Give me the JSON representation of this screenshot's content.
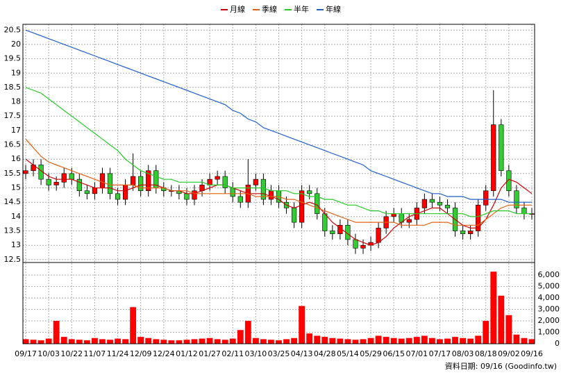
{
  "chart_data": [
    {
      "type": "candlestick",
      "open": [
        15.5,
        15.6,
        15.8,
        15.3,
        15.1,
        15.2,
        15.5,
        15.3,
        14.9,
        14.8,
        15.0,
        15.5,
        14.8,
        14.6,
        15.1,
        15.4,
        14.9,
        15.6,
        15.0,
        14.9,
        14.9,
        14.8,
        14.6,
        14.9,
        15.1,
        15.3,
        15.4,
        15.0,
        14.7,
        14.5,
        15.1,
        15.3,
        14.6,
        14.9,
        14.5,
        14.3,
        13.8,
        14.9,
        14.8,
        14.1,
        13.5,
        13.4,
        13.7,
        13.2,
        12.9,
        13.0,
        13.1,
        13.6,
        14.0,
        14.1,
        13.8,
        13.9,
        14.3,
        14.6,
        14.5,
        14.4,
        14.3,
        13.5,
        13.4,
        13.5,
        14.4,
        14.9,
        17.2,
        15.6,
        14.9,
        14.3,
        14.1
      ],
      "high": [
        15.8,
        16.0,
        16.0,
        15.5,
        15.4,
        15.7,
        15.7,
        15.5,
        15.1,
        15.2,
        15.7,
        15.7,
        15.0,
        15.3,
        16.2,
        15.6,
        15.8,
        15.8,
        15.2,
        15.1,
        15.1,
        15.0,
        15.1,
        15.3,
        15.5,
        15.6,
        15.6,
        15.2,
        14.9,
        16.0,
        15.5,
        15.5,
        15.1,
        15.1,
        14.7,
        14.5,
        15.1,
        15.1,
        15.0,
        14.3,
        13.7,
        13.9,
        13.9,
        13.4,
        13.2,
        13.3,
        13.8,
        14.2,
        14.3,
        14.3,
        14.1,
        14.5,
        14.8,
        14.8,
        14.7,
        14.6,
        14.5,
        13.7,
        13.7,
        14.6,
        15.1,
        18.4,
        17.4,
        15.8,
        15.1,
        14.5,
        14.3
      ],
      "low": [
        15.3,
        15.4,
        15.1,
        14.9,
        14.9,
        15.0,
        15.1,
        14.7,
        14.6,
        14.6,
        14.8,
        14.6,
        14.4,
        14.4,
        14.9,
        14.7,
        14.7,
        14.8,
        14.7,
        14.7,
        14.6,
        14.4,
        14.4,
        14.7,
        14.9,
        15.1,
        14.8,
        14.5,
        14.3,
        14.3,
        14.9,
        14.4,
        14.4,
        14.3,
        14.1,
        13.6,
        13.6,
        14.6,
        13.9,
        13.3,
        13.2,
        13.2,
        13.0,
        12.7,
        12.7,
        12.8,
        12.9,
        13.4,
        13.8,
        13.6,
        13.6,
        13.7,
        14.1,
        14.3,
        14.2,
        14.1,
        13.3,
        13.2,
        13.2,
        13.3,
        14.2,
        14.7,
        15.4,
        14.7,
        14.1,
        13.9,
        13.9
      ],
      "close": [
        15.6,
        15.8,
        15.3,
        15.1,
        15.2,
        15.5,
        15.3,
        14.9,
        14.8,
        15.0,
        15.5,
        14.8,
        14.6,
        15.1,
        15.4,
        14.9,
        15.6,
        15.0,
        14.9,
        14.9,
        14.8,
        14.6,
        14.9,
        15.1,
        15.3,
        15.4,
        15.0,
        14.7,
        14.5,
        15.1,
        15.3,
        14.6,
        14.9,
        14.5,
        14.3,
        13.8,
        14.9,
        14.8,
        14.1,
        13.5,
        13.4,
        13.7,
        13.2,
        12.9,
        13.0,
        13.1,
        13.6,
        14.0,
        14.1,
        13.8,
        13.9,
        14.3,
        14.6,
        14.5,
        14.4,
        14.3,
        13.5,
        13.4,
        13.5,
        14.4,
        14.9,
        17.2,
        15.6,
        14.9,
        14.3,
        14.1,
        14.1
      ],
      "up_color": "#ff0000",
      "down_color": "#33cc33",
      "series": [
        {
          "name": "月線",
          "color": "#cc0000",
          "values": [
            16.0,
            15.8,
            15.6,
            15.4,
            15.3,
            15.3,
            15.3,
            15.2,
            15.1,
            15.0,
            15.0,
            15.0,
            14.9,
            14.9,
            15.0,
            15.1,
            15.1,
            15.1,
            15.0,
            14.9,
            14.9,
            14.8,
            14.8,
            14.9,
            15.0,
            15.1,
            15.1,
            15.0,
            14.9,
            14.8,
            14.8,
            14.8,
            14.7,
            14.6,
            14.4,
            14.3,
            14.4,
            14.5,
            14.4,
            14.1,
            13.8,
            13.6,
            13.4,
            13.2,
            13.1,
            13.0,
            13.1,
            13.3,
            13.6,
            13.8,
            14.0,
            14.1,
            14.2,
            14.3,
            14.3,
            14.1,
            13.9,
            13.7,
            13.6,
            13.6,
            13.9,
            14.4,
            15.0,
            15.3,
            15.2,
            15.0,
            14.8
          ]
        },
        {
          "name": "季線",
          "color": "#e06010",
          "values": [
            16.7,
            16.4,
            16.1,
            15.9,
            15.8,
            15.7,
            15.6,
            15.5,
            15.4,
            15.3,
            15.2,
            15.1,
            15.1,
            15.1,
            15.1,
            15.0,
            15.0,
            15.0,
            15.0,
            14.9,
            14.9,
            14.9,
            14.8,
            14.8,
            14.8,
            14.8,
            14.8,
            14.8,
            14.8,
            14.8,
            14.7,
            14.7,
            14.7,
            14.7,
            14.6,
            14.6,
            14.5,
            14.4,
            14.3,
            14.2,
            14.1,
            14.0,
            13.9,
            13.8,
            13.8,
            13.8,
            13.8,
            13.8,
            13.8,
            13.7,
            13.7,
            13.7,
            13.7,
            13.8,
            13.8,
            13.8,
            13.7,
            13.7,
            13.7,
            13.7,
            13.9,
            14.1,
            14.3,
            14.4,
            14.4,
            14.4,
            14.4
          ]
        },
        {
          "name": "半年",
          "color": "#22cc22",
          "values": [
            18.5,
            18.4,
            18.3,
            18.1,
            17.9,
            17.7,
            17.5,
            17.3,
            17.1,
            16.9,
            16.7,
            16.5,
            16.3,
            16.0,
            15.8,
            15.6,
            15.5,
            15.4,
            15.3,
            15.3,
            15.2,
            15.2,
            15.2,
            15.2,
            15.1,
            15.1,
            15.1,
            15.0,
            15.0,
            15.0,
            15.0,
            15.0,
            14.9,
            14.9,
            14.9,
            14.8,
            14.8,
            14.7,
            14.7,
            14.6,
            14.6,
            14.5,
            14.4,
            14.4,
            14.3,
            14.2,
            14.2,
            14.1,
            14.1,
            14.1,
            14.1,
            14.1,
            14.1,
            14.1,
            14.1,
            14.1,
            14.1,
            14.1,
            14.0,
            14.0,
            14.1,
            14.2,
            14.2,
            14.2,
            14.1,
            14.1,
            14.1
          ]
        },
        {
          "name": "年線",
          "color": "#1f5fcc",
          "values": [
            20.5,
            20.4,
            20.3,
            20.2,
            20.1,
            20.0,
            19.9,
            19.8,
            19.7,
            19.6,
            19.5,
            19.4,
            19.3,
            19.2,
            19.1,
            19.0,
            18.9,
            18.8,
            18.7,
            18.6,
            18.5,
            18.4,
            18.3,
            18.2,
            18.1,
            18.0,
            17.9,
            17.7,
            17.6,
            17.4,
            17.3,
            17.1,
            17.0,
            16.9,
            16.8,
            16.7,
            16.6,
            16.5,
            16.4,
            16.3,
            16.2,
            16.1,
            16.0,
            15.9,
            15.8,
            15.6,
            15.5,
            15.4,
            15.3,
            15.2,
            15.1,
            15.0,
            14.9,
            14.8,
            14.8,
            14.7,
            14.7,
            14.7,
            14.6,
            14.6,
            14.6,
            14.6,
            14.6,
            14.5,
            14.5,
            14.5,
            14.5
          ]
        }
      ],
      "ylim": [
        12.4,
        20.7
      ],
      "yticks": [
        12.5,
        13,
        13.5,
        14,
        14.5,
        15,
        15.5,
        16,
        16.5,
        17,
        17.5,
        18,
        18.5,
        19,
        19.5,
        20,
        20.5
      ],
      "grid": true,
      "legend": "top"
    },
    {
      "type": "bar",
      "categories": [
        "09/17",
        null,
        null,
        "10/03",
        null,
        null,
        "10/22",
        null,
        null,
        "11/07",
        null,
        null,
        "11/24",
        null,
        null,
        "12/09",
        null,
        null,
        "12/24",
        null,
        null,
        "01/12",
        null,
        null,
        "01/27",
        null,
        null,
        "02/11",
        null,
        null,
        "03/10",
        null,
        null,
        "03/25",
        null,
        null,
        "04/13",
        null,
        null,
        "04/28",
        null,
        null,
        "05/14",
        null,
        null,
        "05/29",
        null,
        null,
        "06/15",
        null,
        null,
        "07/01",
        null,
        null,
        "07/17",
        null,
        null,
        "08/03",
        null,
        null,
        "08/18",
        null,
        null,
        "09/02",
        null,
        null,
        "09/16"
      ],
      "values": [
        400,
        350,
        300,
        450,
        2000,
        600,
        400,
        350,
        300,
        500,
        400,
        350,
        450,
        400,
        3200,
        600,
        500,
        400,
        350,
        300,
        300,
        350,
        400,
        450,
        500,
        400,
        350,
        450,
        1200,
        2000,
        500,
        400,
        350,
        300,
        400,
        500,
        3300,
        900,
        700,
        600,
        500,
        450,
        400,
        350,
        400,
        500,
        700,
        600,
        500,
        450,
        500,
        600,
        700,
        500,
        400,
        450,
        600,
        500,
        450,
        700,
        2000,
        6300,
        4200,
        2500,
        800,
        500,
        400
      ],
      "color": "#ff0000",
      "ylim": [
        0,
        7100
      ],
      "yticks": [
        0,
        {
          "value": 1000,
          "label": "1,000"
        },
        {
          "value": 2000,
          "label": "2,000"
        },
        {
          "value": 3000,
          "label": "3,000"
        },
        {
          "value": 4000,
          "label": "4,000"
        },
        {
          "value": 5000,
          "label": "5,000"
        },
        {
          "value": 6000,
          "label": "6,000"
        }
      ],
      "grid": true,
      "source": "資料日期: 09/16 (Goodinfo.tw)"
    }
  ]
}
